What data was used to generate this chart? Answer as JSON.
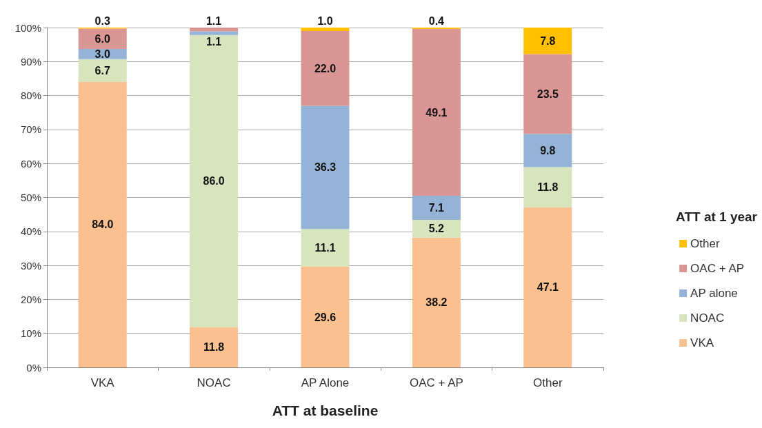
{
  "chart_data": {
    "type": "bar",
    "xlabel": "ATT at baseline",
    "legend_title": "ATT at 1 year",
    "categories": [
      "VKA",
      "NOAC",
      "AP Alone",
      "OAC + AP",
      "Other"
    ],
    "stacked": true,
    "grid": "y",
    "legend": "right",
    "ylim": [
      0,
      100
    ],
    "yticks": [
      {
        "value": 0,
        "label": "0%"
      },
      {
        "value": 10,
        "label": "10%"
      },
      {
        "value": 20,
        "label": "20%"
      },
      {
        "value": 30,
        "label": "30%"
      },
      {
        "value": 40,
        "label": "40%"
      },
      {
        "value": 50,
        "label": "50%"
      },
      {
        "value": 60,
        "label": "60%"
      },
      {
        "value": 70,
        "label": "70%"
      },
      {
        "value": 80,
        "label": "80%"
      },
      {
        "value": 90,
        "label": "90%"
      },
      {
        "value": 100,
        "label": "100%"
      }
    ],
    "series": [
      {
        "name": "VKA",
        "color": "#fac090",
        "values": [
          84.0,
          11.8,
          29.6,
          38.2,
          47.1
        ],
        "value_labels": [
          "84.0",
          "11.8",
          "29.6",
          "38.2",
          "47.1"
        ]
      },
      {
        "name": "NOAC",
        "color": "#d7e4bd",
        "values": [
          6.7,
          86.0,
          11.1,
          5.2,
          11.8
        ],
        "value_labels": [
          "6.7",
          "86.0",
          "11.1",
          "5.2",
          "11.8"
        ]
      },
      {
        "name": "AP alone",
        "color": "#95b3d7",
        "values": [
          3.0,
          1.1,
          36.3,
          7.1,
          9.8
        ],
        "value_labels": [
          "3.0",
          "1.1",
          "36.3",
          "7.1",
          "9.8"
        ]
      },
      {
        "name": "OAC + AP",
        "color": "#d99694",
        "values": [
          6.0,
          1.1,
          22.0,
          49.1,
          23.5
        ],
        "value_labels": [
          "6.0",
          "1.1",
          "22.0",
          "49.1",
          "23.5"
        ]
      },
      {
        "name": "Other",
        "color": "#ffc000",
        "values": [
          0.3,
          null,
          1.0,
          0.4,
          7.8
        ],
        "value_labels": [
          "0.3",
          null,
          "1.0",
          "0.4",
          "7.8"
        ]
      }
    ]
  }
}
